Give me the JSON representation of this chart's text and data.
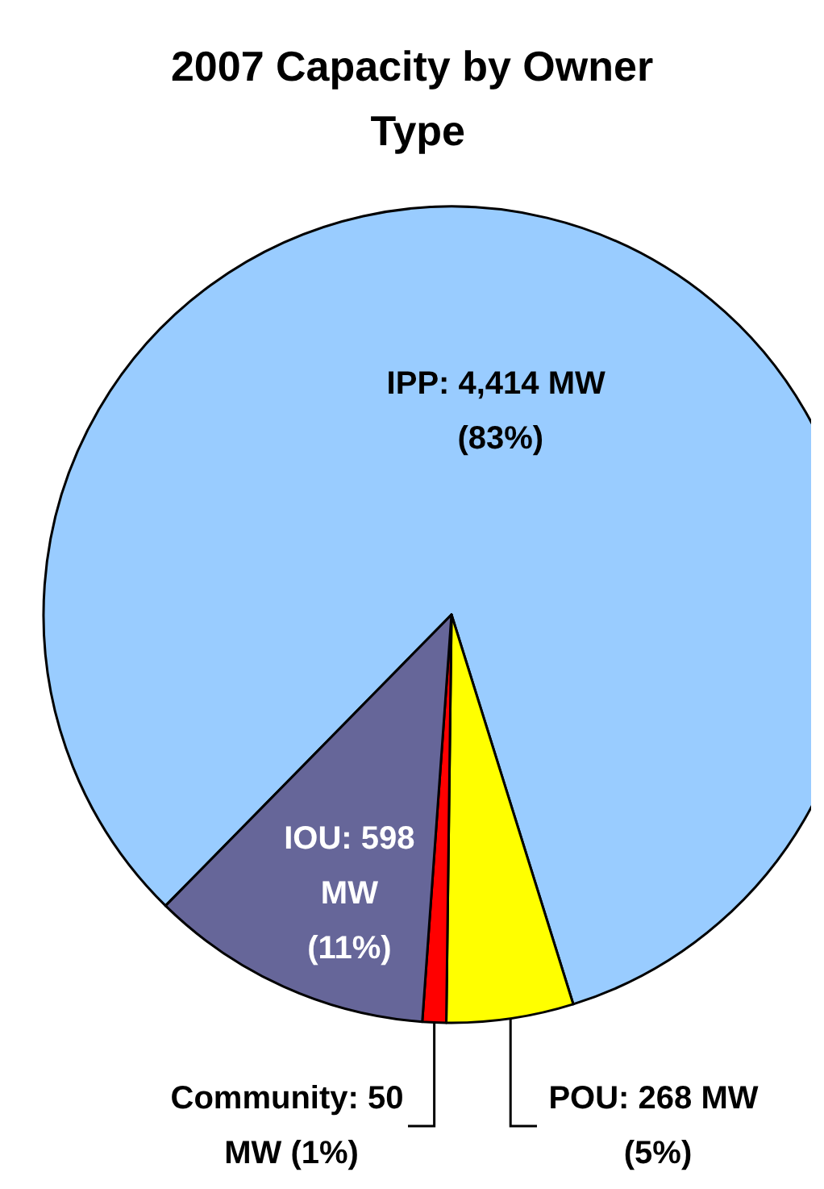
{
  "chart_data": {
    "type": "pie",
    "title": "2007 Capacity by Owner Type",
    "categories": [
      "IPP",
      "POU",
      "Community",
      "IOU"
    ],
    "values": [
      4414,
      268,
      50,
      598
    ],
    "colors": [
      "#99ccff",
      "#ffff00",
      "#ff0000",
      "#666699"
    ],
    "value_labels": [
      "4,414 MW (83%)",
      "268 MW (5%)",
      "50 MW (1%)",
      "598 MW (11%)"
    ]
  }
}
